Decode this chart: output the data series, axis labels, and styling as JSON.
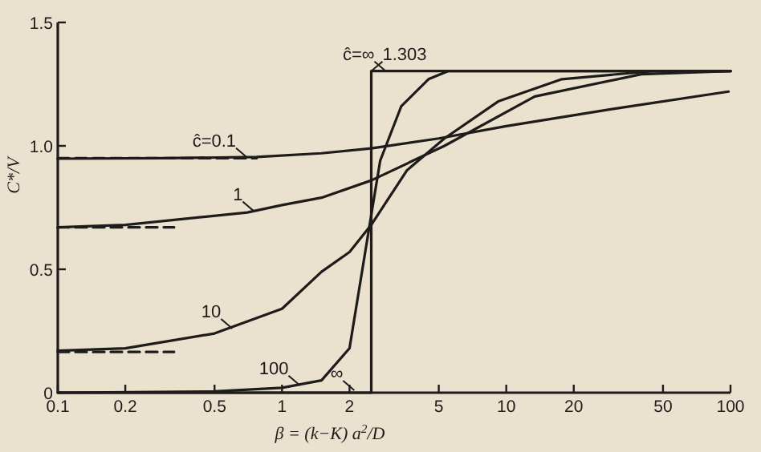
{
  "chart_data": {
    "type": "line",
    "xlabel": "β = (k−K) a$^{2}$/D",
    "ylabel": "C*/V",
    "log": "x",
    "xlim": [
      0.1,
      100
    ],
    "ylim": [
      0,
      1.5
    ],
    "xticks": [
      0.1,
      0.2,
      0.5,
      1,
      2,
      5,
      10,
      20,
      50,
      100
    ],
    "yticks": [
      {
        "value": 0,
        "label": "0"
      },
      {
        "value": 0.5,
        "label": "0.5"
      },
      {
        "value": 1,
        "label": "1.0"
      },
      {
        "value": 1.5,
        "label": "1.5"
      }
    ],
    "grid": false,
    "marker": "none",
    "line_style": "solid",
    "series": [
      {
        "color": "#1e1c1a",
        "x": [
          0.1,
          0.3,
          0.77,
          1.5,
          2.5,
          5,
          10,
          30,
          98
        ],
        "values": [
          0.948,
          0.95,
          0.955,
          0.97,
          0.99,
          1.03,
          1.08,
          1.15,
          1.22
        ]
      },
      {
        "color": "#1e1c1a",
        "x": [
          0.1,
          0.2,
          0.33,
          0.7,
          1,
          1.5,
          2.5,
          5.3,
          13.4,
          40,
          100
        ],
        "values": [
          0.67,
          0.68,
          0.7,
          0.73,
          0.76,
          0.79,
          0.86,
          1.0,
          1.2,
          1.29,
          1.303
        ]
      },
      {
        "color": "#1e1c1a",
        "x": [
          0.1,
          0.2,
          0.5,
          1,
          1.5,
          2,
          2.5,
          3.6,
          5.3,
          9.2,
          17.7,
          45,
          100
        ],
        "values": [
          0.17,
          0.18,
          0.24,
          0.34,
          0.49,
          0.57,
          0.68,
          0.9,
          1.03,
          1.18,
          1.27,
          1.303,
          1.303
        ]
      },
      {
        "color": "#1e1c1a",
        "x": [
          0.1,
          0.5,
          1,
          1.5,
          2,
          2.5,
          2.74,
          3.4,
          4.5,
          5.5,
          100
        ],
        "values": [
          0,
          0.005,
          0.02,
          0.05,
          0.18,
          0.72,
          0.94,
          1.16,
          1.27,
          1.303,
          1.303
        ]
      },
      {
        "color": "#1e1c1a",
        "x": [
          0.1,
          2.5,
          2.5,
          100
        ],
        "values": [
          0,
          0,
          1.303,
          1.303
        ]
      },
      {
        "color": "#1e1c1a",
        "line_style": "dashed",
        "x": [
          0.1,
          0.77
        ],
        "values": [
          0.95,
          0.95
        ]
      },
      {
        "color": "#1e1c1a",
        "line_style": "dashed",
        "x": [
          0.1,
          0.33
        ],
        "values": [
          0.67,
          0.67
        ]
      },
      {
        "color": "#1e1c1a",
        "line_style": "dashed",
        "x": [
          0.1,
          0.33
        ],
        "values": [
          0.165,
          0.165
        ]
      }
    ],
    "annotations": [
      {
        "text": "ĉ=0.1",
        "x": 0.7,
        "y": 0.952
      },
      {
        "text": "1",
        "x": 0.75,
        "y": 0.735
      },
      {
        "text": "10",
        "x": 0.6,
        "y": 0.26
      },
      {
        "text": "100",
        "x": 1.2,
        "y": 0.03
      },
      {
        "text": "∞",
        "x": 2.1,
        "y": 0.01
      },
      {
        "text": "ĉ=∞",
        "x": 2.9,
        "y": 1.303
      },
      {
        "text": "1.303",
        "x": 2.5,
        "y": 1.303
      }
    ]
  }
}
